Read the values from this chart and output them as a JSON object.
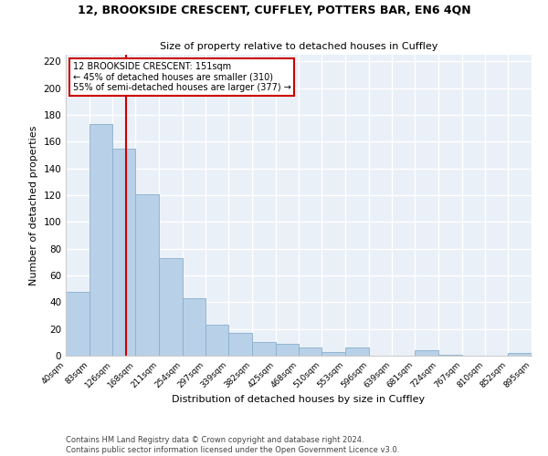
{
  "title": "12, BROOKSIDE CRESCENT, CUFFLEY, POTTERS BAR, EN6 4QN",
  "subtitle": "Size of property relative to detached houses in Cuffley",
  "xlabel": "Distribution of detached houses by size in Cuffley",
  "ylabel": "Number of detached properties",
  "bar_color": "#b8d0e8",
  "bar_edgecolor": "#8ab0cc",
  "background_color": "#eaf0f8",
  "annotation_box_color": "#ffffff",
  "annotation_border_color": "#cc0000",
  "vline_color": "#cc0000",
  "vline_x": 151,
  "annotation_text_line1": "12 BROOKSIDE CRESCENT: 151sqm",
  "annotation_text_line2": "← 45% of detached houses are smaller (310)",
  "annotation_text_line3": "55% of semi-detached houses are larger (377) →",
  "bins": [
    40,
    83,
    126,
    168,
    211,
    254,
    297,
    339,
    382,
    425,
    468,
    510,
    553,
    596,
    639,
    681,
    724,
    767,
    810,
    852,
    895
  ],
  "counts": [
    48,
    173,
    155,
    121,
    73,
    43,
    23,
    17,
    10,
    9,
    6,
    3,
    6,
    0,
    0,
    4,
    1,
    0,
    0,
    2
  ],
  "ylim": [
    0,
    225
  ],
  "yticks": [
    0,
    20,
    40,
    60,
    80,
    100,
    120,
    140,
    160,
    180,
    200,
    220
  ],
  "footnote1": "Contains HM Land Registry data © Crown copyright and database right 2024.",
  "footnote2": "Contains public sector information licensed under the Open Government Licence v3.0."
}
